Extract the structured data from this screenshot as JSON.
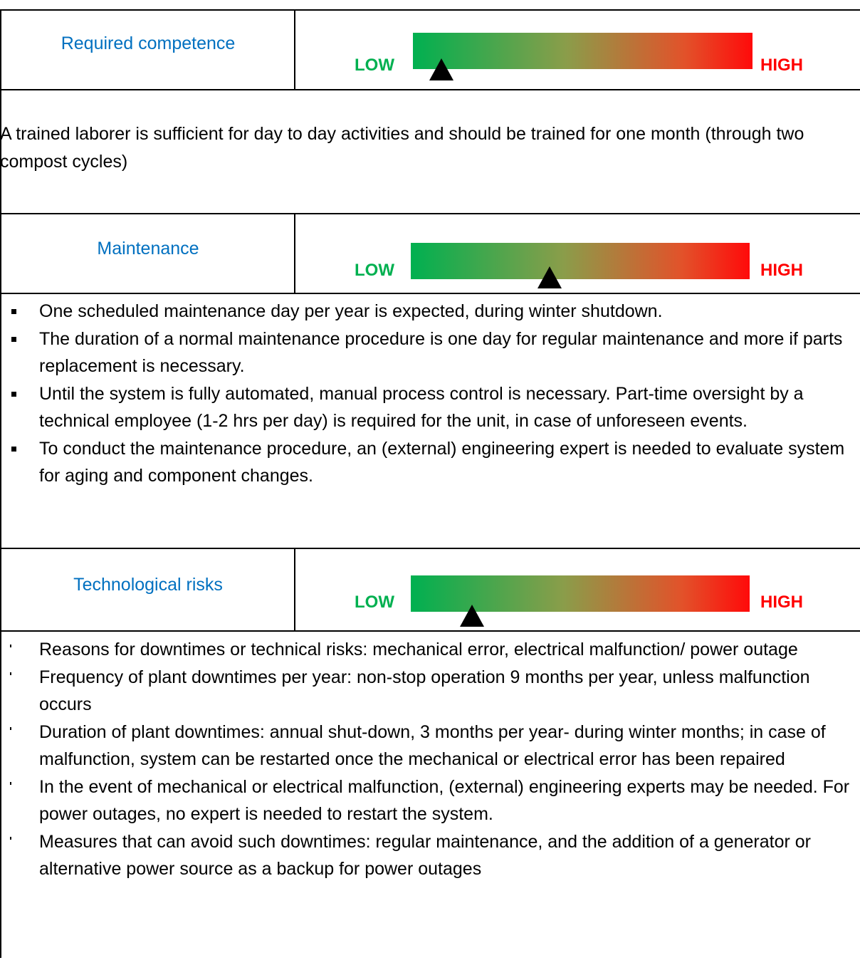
{
  "sections": [
    {
      "label": "Required competence",
      "low": "LOW",
      "high": "HIGH",
      "text": "A trained laborer is sufficient for day to day activities and should be trained for one month (through two compost cycles)"
    },
    {
      "label": "Maintenance",
      "low": "LOW",
      "high": "HIGH",
      "items": [
        "One scheduled maintenance day per year is expected, during winter shutdown.",
        "The duration of a normal maintenance procedure is one day for regular maintenance and more if parts replacement is necessary.",
        "Until the system is fully automated, manual process control is necessary. Part-time oversight by a technical employee (1-2 hrs per day) is required for the unit, in case of unforeseen events.",
        "To conduct the maintenance procedure, an (external) engineering expert is needed to evaluate system for aging and component changes."
      ]
    },
    {
      "label": "Technological risks",
      "low": "LOW",
      "high": "HIGH",
      "items": [
        "Reasons for downtimes or technical risks: mechanical error, electrical malfunction/ power outage",
        "Frequency of plant downtimes per year: non-stop operation 9 months per year, unless malfunction occurs",
        "Duration of plant downtimes: annual shut-down, 3 months per year- during winter months; in case of malfunction, system can be restarted once the mechanical or electrical error has been repaired",
        "In the event of mechanical or electrical malfunction, (external) engineering experts may be needed. For power outages, no expert is needed to restart the system.",
        "Measures that can avoid such downtimes: regular maintenance, and the addition of a generator or alternative power source as a backup for power outages"
      ]
    }
  ]
}
